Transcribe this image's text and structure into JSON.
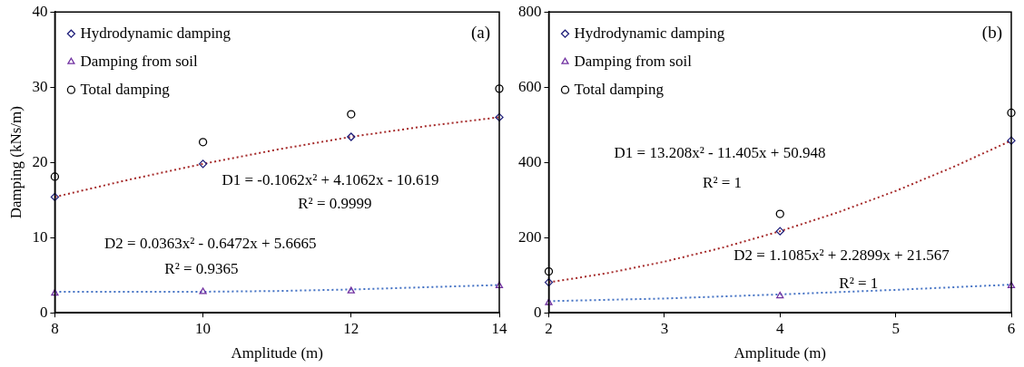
{
  "chart_data": [
    {
      "type": "scatter",
      "xlabel": "Amplitude (m)",
      "ylabel": "Damping (kNs/m)",
      "xlim": [
        8,
        14
      ],
      "xticks": [
        8,
        10,
        12,
        14
      ],
      "ylim": [
        0,
        40
      ],
      "yticks": [
        0,
        10,
        20,
        30,
        40
      ],
      "grid": false,
      "legend": "top left",
      "series": [
        {
          "name": "Hydrodynamic damping",
          "color": "#1f1f7a",
          "marker": "diamond",
          "x": [
            8,
            10,
            12,
            14
          ],
          "values": [
            15.4,
            19.8,
            23.4,
            26.0
          ]
        },
        {
          "name": "Damping from soil",
          "color": "#7030a0",
          "marker": "triangle",
          "x": [
            8,
            10,
            12,
            14
          ],
          "values": [
            2.6,
            2.8,
            2.9,
            3.6
          ]
        },
        {
          "name": "Total damping",
          "color": "#000000",
          "marker": "circle",
          "x": [
            8,
            10,
            12,
            14
          ],
          "values": [
            18.1,
            22.7,
            26.4,
            29.8
          ]
        },
        {
          "type": "line",
          "color": "#a52a2a",
          "marker": "none",
          "line_style": "dotted",
          "x": [
            8,
            9,
            10,
            11,
            12,
            13,
            14
          ],
          "values": [
            15.4,
            17.7,
            19.8,
            21.7,
            23.4,
            24.8,
            26.0
          ]
        },
        {
          "type": "line",
          "color": "#4472c4",
          "marker": "none",
          "line_style": "dotted",
          "x": [
            8,
            9,
            10,
            11,
            12,
            13,
            14
          ],
          "values": [
            2.8,
            2.8,
            2.8,
            2.9,
            3.1,
            3.4,
            3.7
          ]
        }
      ],
      "annotations": [
        "(a)",
        "D1 = -0.1062x² + 4.1062x - 10.619",
        "R² = 0.9999",
        "D2 = 0.0363x² - 0.6472x + 5.6665",
        "R² = 0.9365"
      ]
    },
    {
      "type": "scatter",
      "xlabel": "Amplitude (m)",
      "xlim": [
        2,
        6
      ],
      "xticks": [
        2,
        3,
        4,
        5,
        6
      ],
      "ylim": [
        0,
        800
      ],
      "yticks": [
        0,
        200,
        400,
        600,
        800
      ],
      "grid": false,
      "legend": "top left",
      "series": [
        {
          "name": "Hydrodynamic damping",
          "color": "#1f1f7a",
          "marker": "diamond",
          "x": [
            2,
            4,
            6
          ],
          "values": [
            81,
            217,
            458
          ]
        },
        {
          "name": "Damping from soil",
          "color": "#7030a0",
          "marker": "triangle",
          "x": [
            2,
            4,
            6
          ],
          "values": [
            27,
            45,
            72
          ]
        },
        {
          "name": "Total damping",
          "color": "#000000",
          "marker": "circle",
          "x": [
            2,
            4,
            6
          ],
          "values": [
            110,
            263,
            532
          ]
        },
        {
          "type": "line",
          "color": "#a52a2a",
          "marker": "none",
          "line_style": "dotted",
          "x": [
            2,
            2.5,
            3,
            3.5,
            4,
            4.5,
            5,
            5.5,
            6
          ],
          "values": [
            81,
            105,
            136,
            173,
            217,
            267,
            324,
            388,
            458
          ]
        },
        {
          "type": "line",
          "color": "#4472c4",
          "marker": "none",
          "line_style": "dotted",
          "x": [
            2,
            3,
            4,
            5,
            6
          ],
          "values": [
            31,
            38,
            49,
            61,
            75
          ]
        }
      ],
      "annotations": [
        "(b)",
        "D1 = 13.208x² - 11.405x + 50.948",
        "R² = 1",
        "D2 = 1.1085x² + 2.2899x + 21.567",
        "R² = 1"
      ]
    }
  ]
}
